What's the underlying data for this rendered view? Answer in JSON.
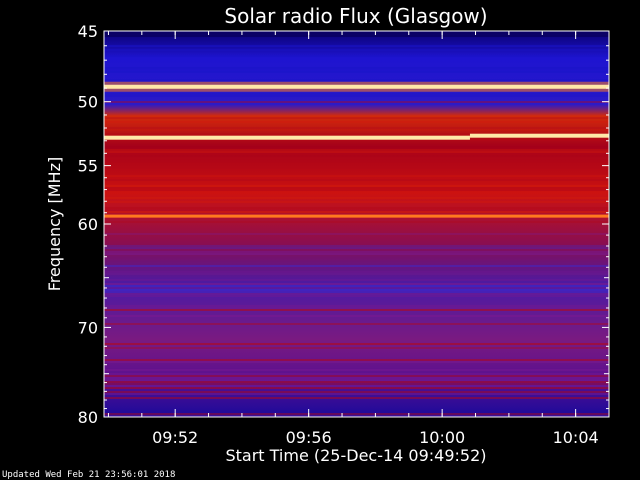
{
  "chart_data": {
    "type": "heatmap",
    "title": "Solar radio Flux (Glasgow)",
    "ylabel": "Frequency [MHz]",
    "xlabel": "Start Time (25-Dec-14 09:49:52)",
    "y_scale": "log",
    "ylim": [
      80,
      45
    ],
    "y_ticks": [
      45,
      50,
      55,
      60,
      70,
      80
    ],
    "xlim": [
      "09:49:52",
      "10:05:00"
    ],
    "x_ticks": [
      "09:52",
      "09:56",
      "10:00",
      "10:04"
    ],
    "colormap": [
      "#08004a",
      "#1a14c8",
      "#3a2bd0",
      "#7a1a90",
      "#b40818",
      "#d21a0c",
      "#ff7a1e",
      "#ffe8a8"
    ],
    "features": [
      {
        "freq_mhz": 48.9,
        "kind": "strong steady emission line"
      },
      {
        "freq_mhz": 52.6,
        "kind": "strong steady emission line, slight upward shift after 10:00"
      },
      {
        "freq_mhz": 59.3,
        "kind": "moderate steady emission line"
      }
    ],
    "grid": false,
    "legend": "none"
  },
  "footer": {
    "updated": "Updated Wed Feb 21 23:56:01 2018"
  }
}
